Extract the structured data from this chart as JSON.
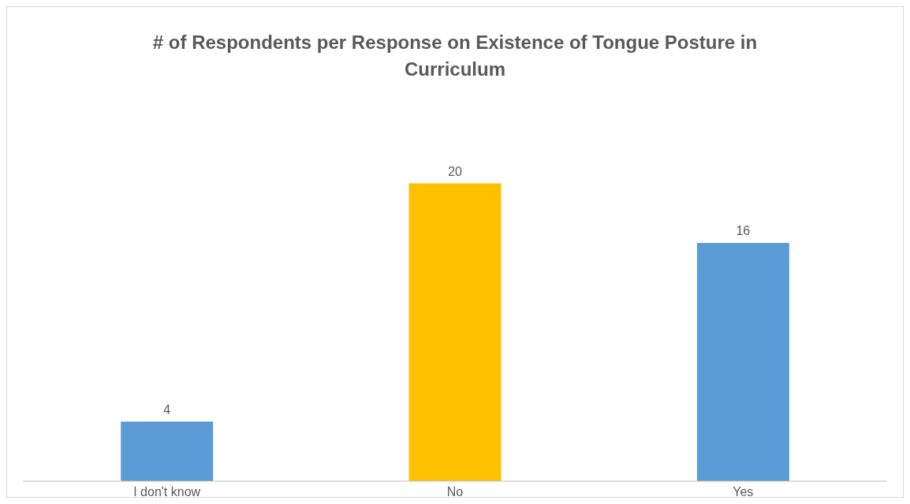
{
  "chart_data": {
    "type": "bar",
    "title": "# of Respondents per Response on Existence of Tongue Posture in Curriculum",
    "categories": [
      "I don't know",
      "No",
      "Yes"
    ],
    "values": [
      4,
      20,
      16
    ],
    "colors": [
      "#5b9bd5",
      "#ffc000",
      "#5b9bd5"
    ],
    "data_labels": true
  }
}
